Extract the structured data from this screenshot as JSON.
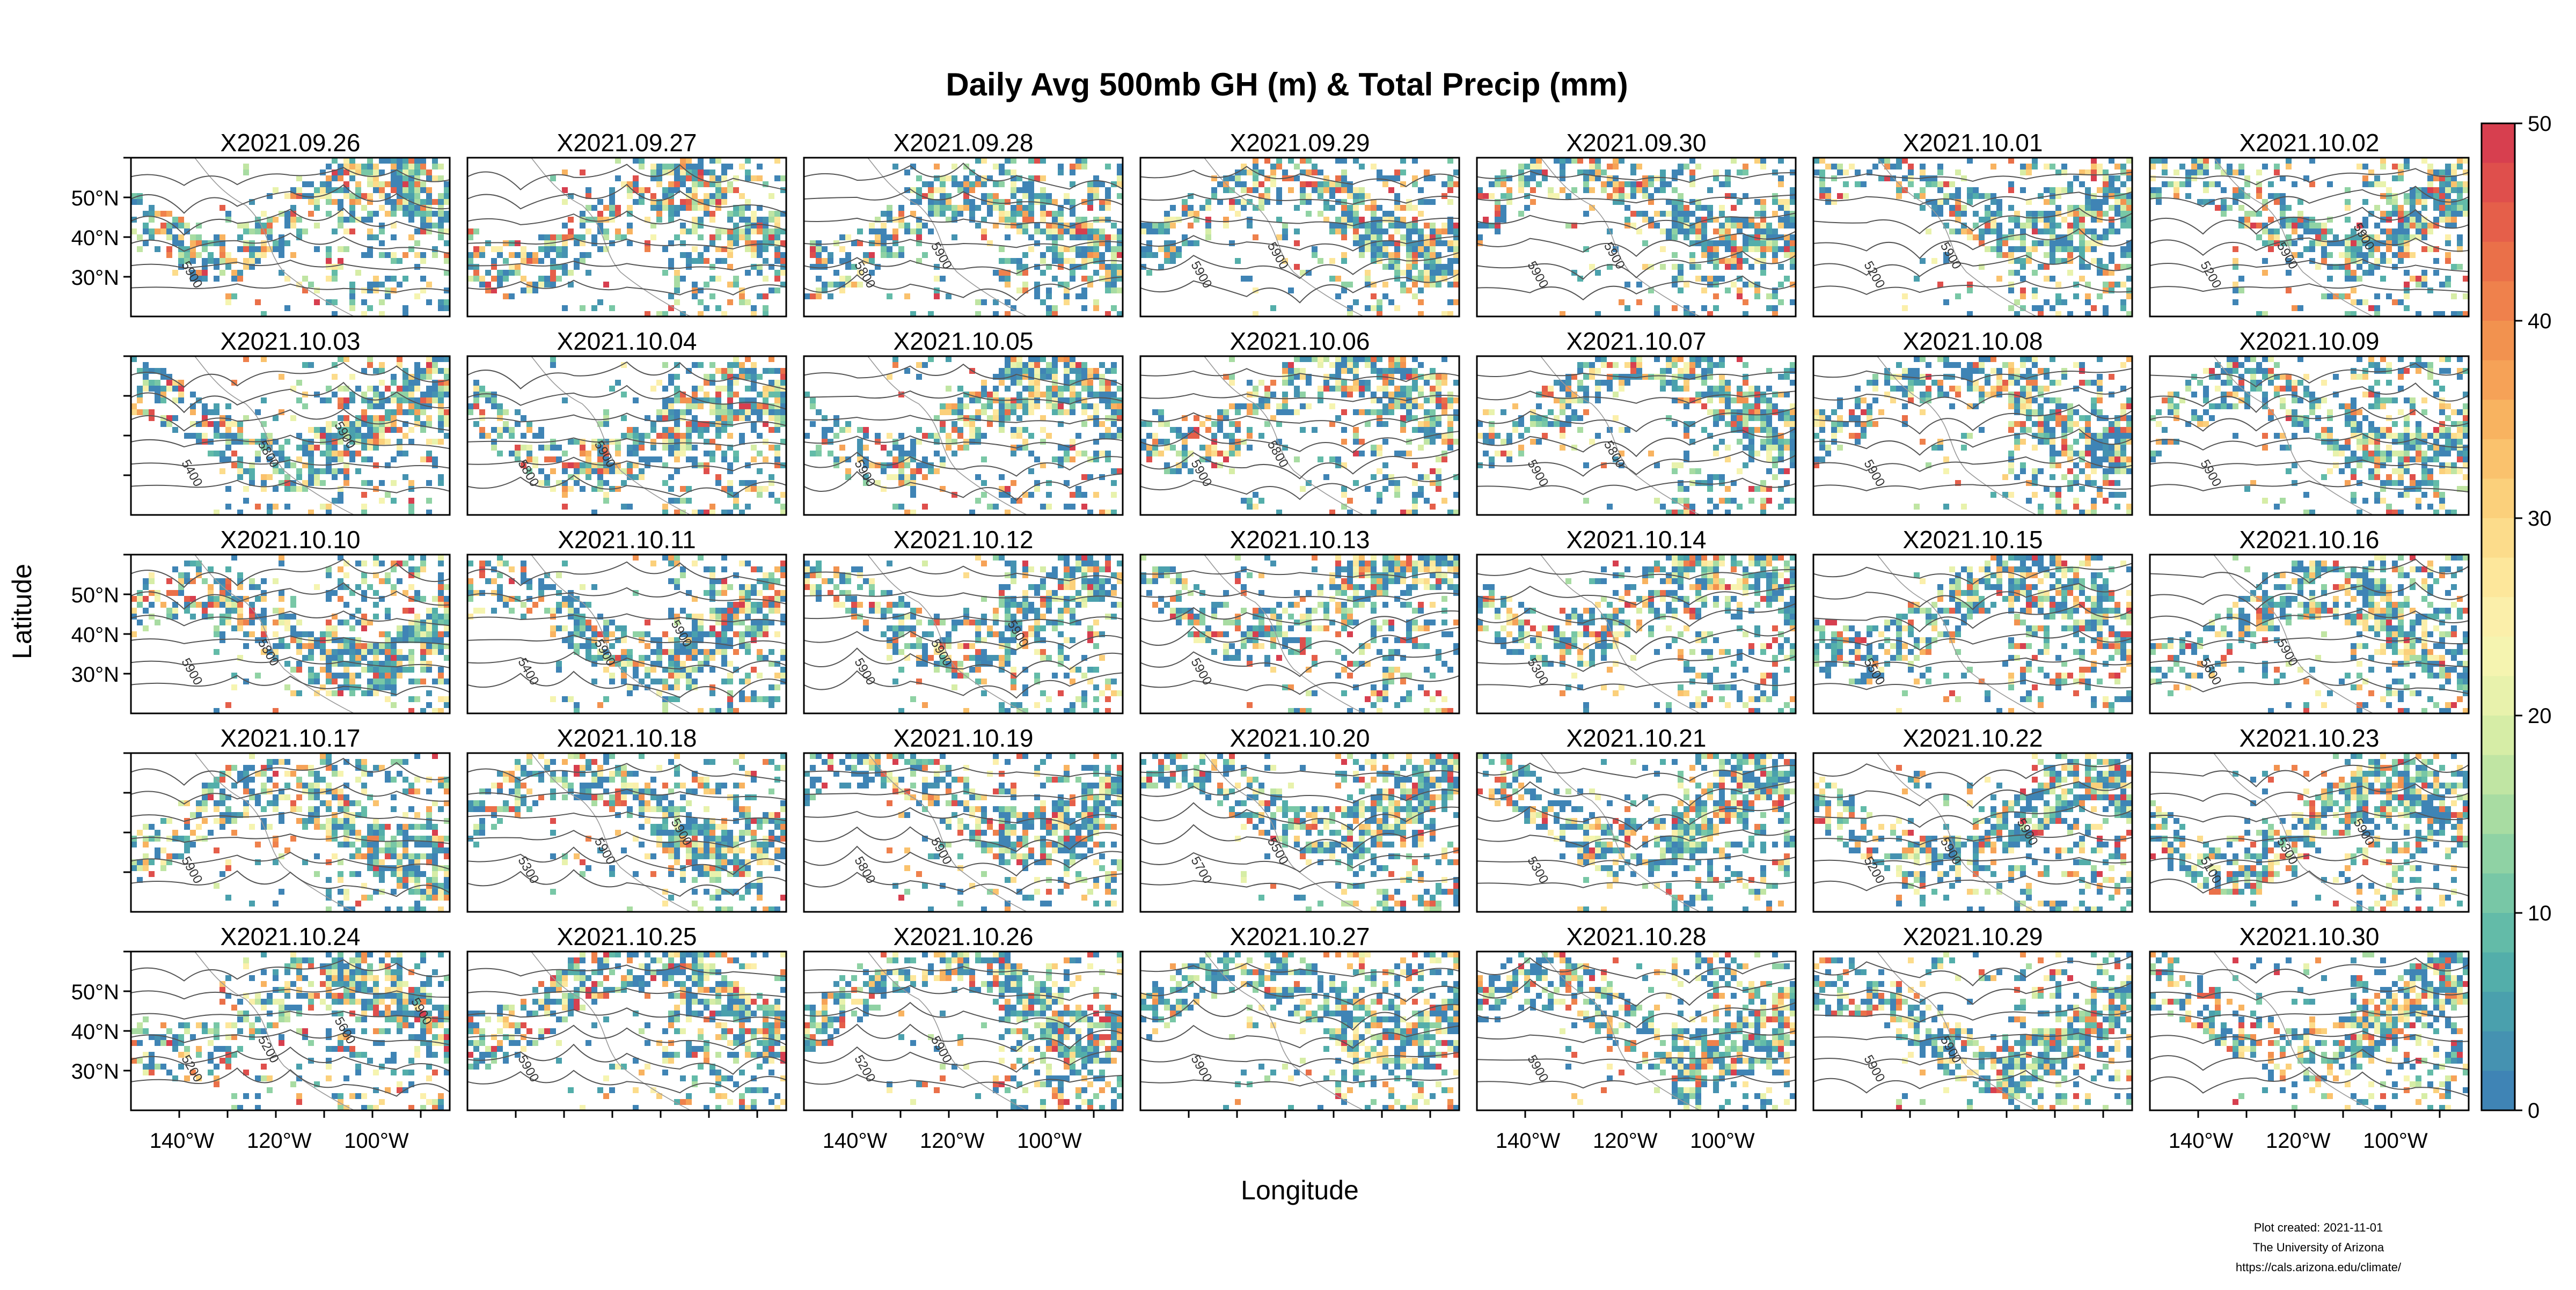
{
  "title": "Daily Avg 500mb GH (m) & Total Precip (mm)",
  "xlabel": "Longitude",
  "ylabel": "Latitude",
  "lat_ticks": [
    "50°N",
    "40°N",
    "30°N"
  ],
  "lon_ticks": [
    "140°W",
    "120°W",
    "100°W"
  ],
  "panels": [
    {
      "date": "X2021.09.26",
      "contours": [
        "5900"
      ]
    },
    {
      "date": "X2021.09.27",
      "contours": []
    },
    {
      "date": "X2021.09.28",
      "contours": [
        "5800",
        "5900"
      ]
    },
    {
      "date": "X2021.09.29",
      "contours": [
        "5900",
        "5900"
      ]
    },
    {
      "date": "X2021.09.30",
      "contours": [
        "5900",
        "5900"
      ]
    },
    {
      "date": "X2021.10.01",
      "contours": [
        "5200",
        "5900"
      ]
    },
    {
      "date": "X2021.10.02",
      "contours": [
        "5200",
        "5900",
        "5900"
      ]
    },
    {
      "date": "X2021.10.03",
      "contours": [
        "5400",
        "5800",
        "5900"
      ]
    },
    {
      "date": "X2021.10.04",
      "contours": [
        "5800",
        "5900"
      ]
    },
    {
      "date": "X2021.10.05",
      "contours": [
        "5900"
      ]
    },
    {
      "date": "X2021.10.06",
      "contours": [
        "5900",
        "5800"
      ]
    },
    {
      "date": "X2021.10.07",
      "contours": [
        "5900",
        "5800"
      ]
    },
    {
      "date": "X2021.10.08",
      "contours": [
        "5900"
      ]
    },
    {
      "date": "X2021.10.09",
      "contours": [
        "5900"
      ]
    },
    {
      "date": "X2021.10.10",
      "contours": [
        "5900",
        "5800"
      ]
    },
    {
      "date": "X2021.10.11",
      "contours": [
        "5400",
        "5900",
        "5900"
      ]
    },
    {
      "date": "X2021.10.12",
      "contours": [
        "5900",
        "5900",
        "5900"
      ]
    },
    {
      "date": "X2021.10.13",
      "contours": [
        "5900"
      ]
    },
    {
      "date": "X2021.10.14",
      "contours": [
        "5300"
      ]
    },
    {
      "date": "X2021.10.15",
      "contours": [
        "5500"
      ]
    },
    {
      "date": "X2021.10.16",
      "contours": [
        "5600",
        "5900"
      ]
    },
    {
      "date": "X2021.10.17",
      "contours": [
        "5900"
      ]
    },
    {
      "date": "X2021.10.18",
      "contours": [
        "5300",
        "5900",
        "5900"
      ]
    },
    {
      "date": "X2021.10.19",
      "contours": [
        "5800",
        "5900"
      ]
    },
    {
      "date": "X2021.10.20",
      "contours": [
        "5700",
        "5500"
      ]
    },
    {
      "date": "X2021.10.21",
      "contours": [
        "5300"
      ]
    },
    {
      "date": "X2021.10.22",
      "contours": [
        "5200",
        "5900",
        "5900"
      ]
    },
    {
      "date": "X2021.10.23",
      "contours": [
        "5100",
        "5300",
        "5900"
      ]
    },
    {
      "date": "X2021.10.24",
      "contours": [
        "5200",
        "5200",
        "5600",
        "5900"
      ]
    },
    {
      "date": "X2021.10.25",
      "contours": [
        "5900"
      ]
    },
    {
      "date": "X2021.10.26",
      "contours": [
        "5200",
        "5900"
      ]
    },
    {
      "date": "X2021.10.27",
      "contours": [
        "5900"
      ]
    },
    {
      "date": "X2021.10.28",
      "contours": [
        "5900"
      ]
    },
    {
      "date": "X2021.10.29",
      "contours": [
        "5900",
        "5900"
      ]
    },
    {
      "date": "X2021.10.30",
      "contours": []
    }
  ],
  "colorbar": {
    "ticks": [
      "50",
      "40",
      "30",
      "20",
      "10",
      "0"
    ],
    "colors": [
      "#d73f4f",
      "#df4f4c",
      "#e55f4a",
      "#ea7049",
      "#ef814c",
      "#f2924f",
      "#f6a257",
      "#f8b360",
      "#fac26d",
      "#fbd07b",
      "#fcdc8b",
      "#fde79b",
      "#fbefaa",
      "#f5f4b0",
      "#e8f2ac",
      "#d6eda6",
      "#c0e5a3",
      "#a8dca2",
      "#8fd2a4",
      "#78c7a6",
      "#63bba8",
      "#53aeaa",
      "#4aa0ad",
      "#4592b1",
      "#3f84b5"
    ],
    "accent_low": "#3f84b5",
    "accent_high": "#d73f4f"
  },
  "footer": {
    "line1": "Plot created: 2021-11-01",
    "line2": "The University of Arizona",
    "line3": "https://cals.arizona.edu/climate/"
  }
}
